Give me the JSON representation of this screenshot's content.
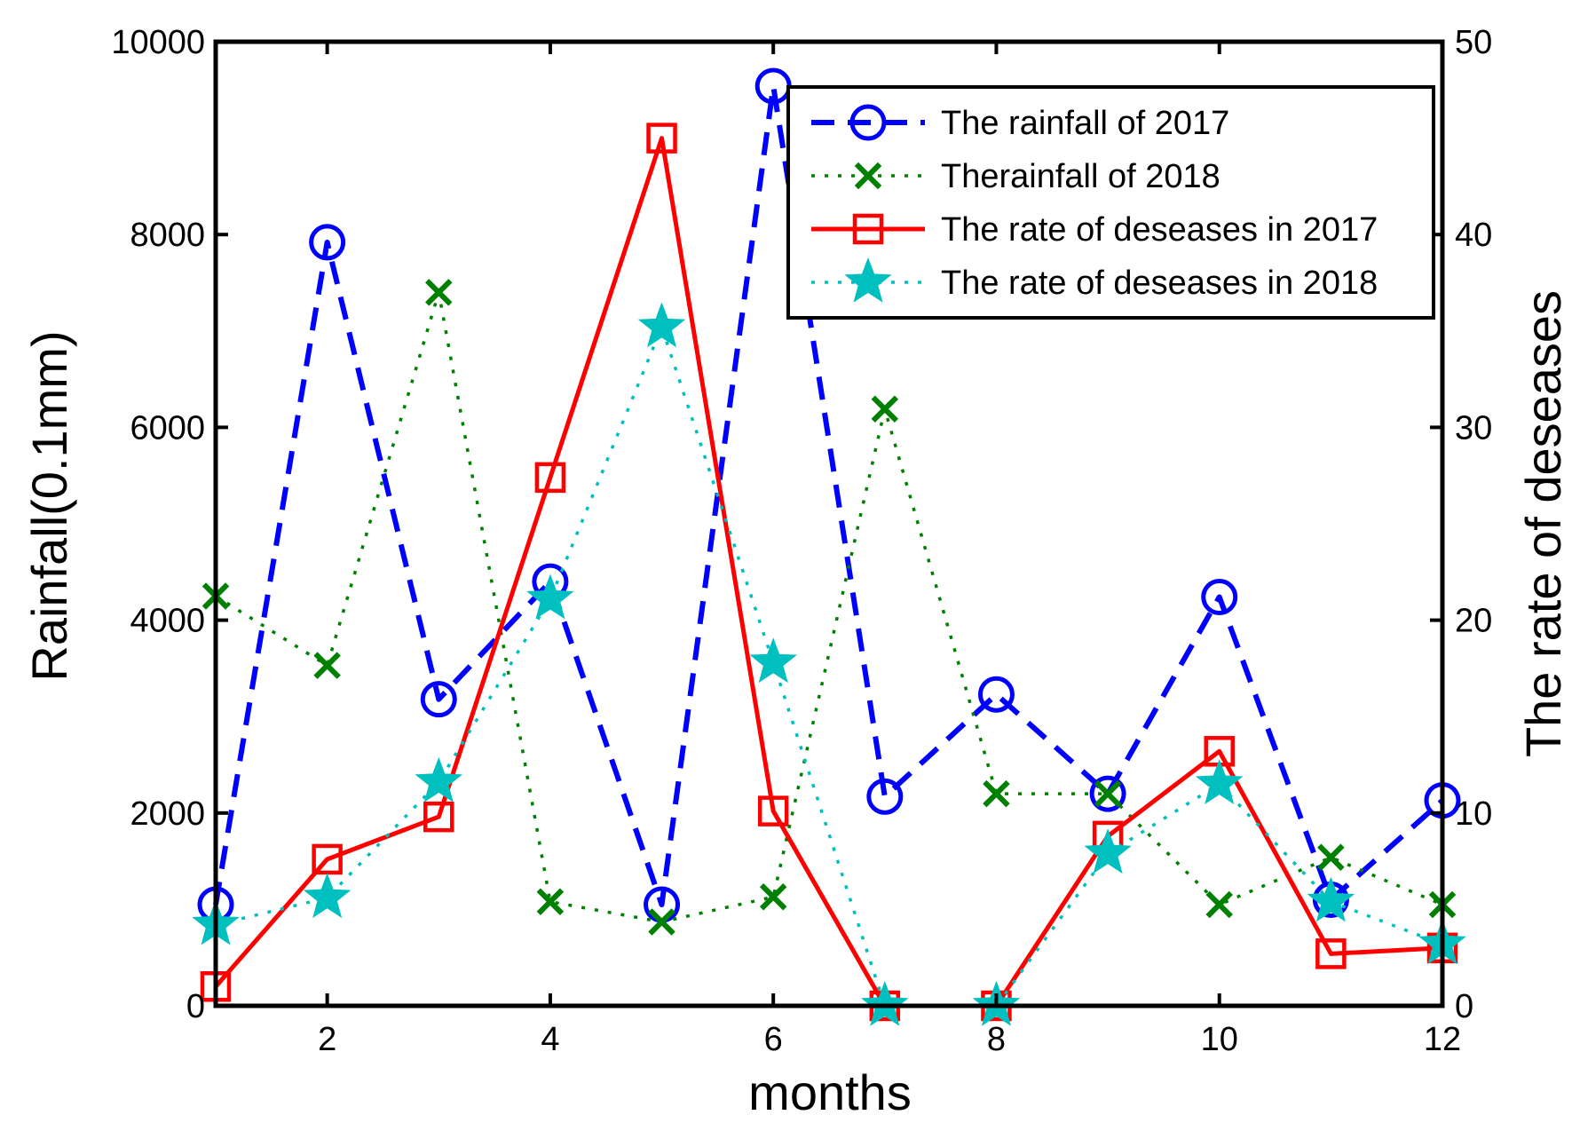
{
  "chart_data": {
    "type": "line",
    "xlabel": "months",
    "ylabel": "Rainfall(0.1mm)",
    "y2label": "The rate of deseases",
    "xlim": [
      1,
      12
    ],
    "ylim": [
      0,
      10000
    ],
    "y2lim": [
      0,
      50
    ],
    "xticks": [
      2,
      4,
      6,
      8,
      10,
      12
    ],
    "yticks": [
      0,
      2000,
      4000,
      6000,
      8000,
      10000
    ],
    "y2ticks": [
      0,
      10,
      20,
      30,
      40,
      50
    ],
    "x": [
      1,
      2,
      3,
      4,
      5,
      6,
      7,
      8,
      9,
      10,
      11,
      12
    ],
    "legend_position": "top-right",
    "grid": false,
    "series": [
      {
        "name": "The rainfall of 2017",
        "axis": "left",
        "color": "#0000ff",
        "line": "dashed",
        "marker": "circle",
        "values": [
          1050,
          7920,
          3180,
          4400,
          1050,
          9540,
          2170,
          3230,
          2200,
          4240,
          1100,
          2130
        ]
      },
      {
        "name": "Therainfall of 2018",
        "axis": "left",
        "color": "#008000",
        "line": "dotted",
        "marker": "x",
        "values": [
          4250,
          3530,
          7400,
          1080,
          870,
          1130,
          6190,
          2200,
          2200,
          1050,
          1540,
          1050
        ]
      },
      {
        "name": "The rate of deseases in 2017",
        "axis": "right",
        "color": "#ff0000",
        "line": "solid",
        "marker": "square",
        "values": [
          1.0,
          7.6,
          9.8,
          27.4,
          45.0,
          10.1,
          0,
          0,
          8.8,
          13.2,
          2.7,
          3.0
        ]
      },
      {
        "name": "The rate of deseases in 2018",
        "axis": "right",
        "color": "#00bfbf",
        "line": "dotted",
        "marker": "star",
        "values": [
          4.2,
          5.6,
          11.6,
          21.1,
          35.2,
          17.8,
          0,
          0,
          7.9,
          11.5,
          5.4,
          3.2
        ]
      }
    ]
  }
}
